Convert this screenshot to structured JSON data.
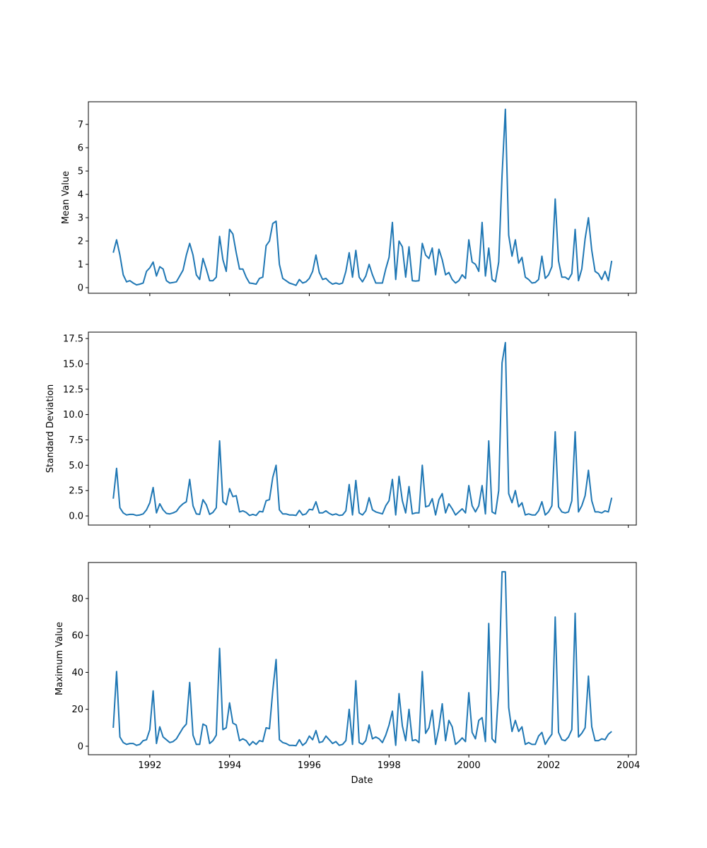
{
  "chart_data": {
    "type": "line",
    "layout": "3 vertically stacked subplots sharing the x axis",
    "xlabel": "Date",
    "xlim": [
      1990.46,
      2004.2
    ],
    "xticks": [
      "1992",
      "1994",
      "1996",
      "1998",
      "2000",
      "2002",
      "2004"
    ],
    "color": "#1f77b4",
    "grid": false,
    "x": [
      "1991-02",
      "1991-03",
      "1991-04",
      "1991-05",
      "1991-06",
      "1991-07",
      "1991-08",
      "1991-09",
      "1991-10",
      "1991-11",
      "1991-12",
      "1992-01",
      "1992-02",
      "1992-03",
      "1992-04",
      "1992-05",
      "1992-06",
      "1992-07",
      "1992-08",
      "1992-09",
      "1992-10",
      "1992-11",
      "1992-12",
      "1993-01",
      "1993-02",
      "1993-03",
      "1993-04",
      "1993-05",
      "1993-06",
      "1993-07",
      "1993-08",
      "1993-09",
      "1993-10",
      "1993-11",
      "1993-12",
      "1994-01",
      "1994-02",
      "1994-03",
      "1994-04",
      "1994-05",
      "1994-06",
      "1994-07",
      "1994-08",
      "1994-09",
      "1994-10",
      "1994-11",
      "1994-12",
      "1995-01",
      "1995-02",
      "1995-03",
      "1995-04",
      "1995-05",
      "1995-06",
      "1995-07",
      "1995-08",
      "1995-09",
      "1995-10",
      "1995-11",
      "1995-12",
      "1996-01",
      "1996-02",
      "1996-03",
      "1996-04",
      "1996-05",
      "1996-06",
      "1996-07",
      "1996-08",
      "1996-09",
      "1996-10",
      "1996-11",
      "1996-12",
      "1997-01",
      "1997-02",
      "1997-03",
      "1997-04",
      "1997-05",
      "1997-06",
      "1997-07",
      "1997-08",
      "1997-09",
      "1997-10",
      "1997-11",
      "1997-12",
      "1998-01",
      "1998-02",
      "1998-03",
      "1998-04",
      "1998-05",
      "1998-06",
      "1998-07",
      "1998-08",
      "1998-09",
      "1998-10",
      "1998-11",
      "1998-12",
      "1999-01",
      "1999-02",
      "1999-03",
      "1999-04",
      "1999-05",
      "1999-06",
      "1999-07",
      "1999-08",
      "1999-09",
      "1999-10",
      "1999-11",
      "1999-12",
      "2000-01",
      "2000-02",
      "2000-03",
      "2000-04",
      "2000-05",
      "2000-06",
      "2000-07",
      "2000-08",
      "2000-09",
      "2000-10",
      "2000-11",
      "2000-12",
      "2001-01",
      "2001-02",
      "2001-03",
      "2001-04",
      "2001-05",
      "2001-06",
      "2001-07",
      "2001-08",
      "2001-09",
      "2001-10",
      "2001-11",
      "2001-12",
      "2002-01",
      "2002-02",
      "2002-03",
      "2002-04",
      "2002-05",
      "2002-06",
      "2002-07",
      "2002-08",
      "2002-09",
      "2002-10",
      "2002-11",
      "2002-12",
      "2003-01",
      "2003-02",
      "2003-03",
      "2003-04",
      "2003-05",
      "2003-06",
      "2003-07",
      "2003-08"
    ],
    "panels": [
      {
        "ylabel": "Mean Value",
        "ylim": [
          -0.24,
          7.97
        ],
        "yticks": [
          "0",
          "1",
          "2",
          "3",
          "4",
          "5",
          "6",
          "7"
        ],
        "ytick_values": [
          0,
          1,
          2,
          3,
          4,
          5,
          6,
          7
        ],
        "values": [
          1.5,
          2.05,
          1.4,
          0.55,
          0.25,
          0.3,
          0.2,
          0.12,
          0.15,
          0.2,
          0.7,
          0.85,
          1.1,
          0.5,
          0.9,
          0.8,
          0.3,
          0.2,
          0.22,
          0.25,
          0.5,
          0.75,
          1.4,
          1.9,
          1.4,
          0.55,
          0.35,
          1.25,
          0.8,
          0.3,
          0.3,
          0.45,
          2.2,
          1.2,
          0.7,
          2.5,
          2.3,
          1.5,
          0.8,
          0.8,
          0.45,
          0.2,
          0.18,
          0.15,
          0.4,
          0.45,
          1.8,
          2.0,
          2.75,
          2.85,
          1.0,
          0.4,
          0.3,
          0.2,
          0.15,
          0.1,
          0.35,
          0.2,
          0.25,
          0.4,
          0.7,
          1.4,
          0.65,
          0.35,
          0.4,
          0.25,
          0.15,
          0.2,
          0.15,
          0.2,
          0.7,
          1.5,
          0.45,
          1.6,
          0.45,
          0.25,
          0.5,
          1.0,
          0.55,
          0.2,
          0.2,
          0.2,
          0.8,
          1.3,
          2.8,
          0.35,
          2.0,
          1.75,
          0.45,
          1.75,
          0.3,
          0.28,
          0.3,
          1.9,
          1.4,
          1.25,
          1.7,
          0.55,
          1.65,
          1.2,
          0.55,
          0.65,
          0.35,
          0.2,
          0.3,
          0.55,
          0.4,
          2.05,
          1.1,
          1.0,
          0.7,
          2.8,
          0.5,
          1.7,
          0.35,
          0.25,
          1.1,
          4.8,
          7.65,
          2.25,
          1.35,
          2.05,
          1.05,
          1.3,
          0.45,
          0.35,
          0.2,
          0.22,
          0.35,
          1.35,
          0.4,
          0.55,
          0.9,
          3.8,
          1.15,
          0.45,
          0.45,
          0.35,
          0.6,
          2.5,
          0.3,
          0.8,
          2.1,
          3.0,
          1.6,
          0.7,
          0.6,
          0.35,
          0.7,
          0.3,
          1.15
        ]
      },
      {
        "ylabel": "Standard Deviation",
        "ylim": [
          -0.9,
          18.13
        ],
        "yticks": [
          "0.0",
          "2.5",
          "5.0",
          "7.5",
          "10.0",
          "12.5",
          "15.0",
          "17.5"
        ],
        "ytick_values": [
          0,
          2.5,
          5,
          7.5,
          10,
          12.5,
          15,
          17.5
        ],
        "values": [
          1.7,
          4.7,
          0.8,
          0.3,
          0.1,
          0.15,
          0.15,
          0.05,
          0.1,
          0.2,
          0.6,
          1.3,
          2.8,
          0.3,
          1.2,
          0.6,
          0.25,
          0.2,
          0.3,
          0.45,
          0.9,
          1.2,
          1.4,
          3.6,
          1.0,
          0.2,
          0.15,
          1.6,
          1.1,
          0.15,
          0.35,
          0.8,
          7.4,
          1.4,
          1.1,
          2.7,
          1.9,
          2.0,
          0.4,
          0.5,
          0.35,
          0.05,
          0.15,
          0.05,
          0.45,
          0.4,
          1.5,
          1.6,
          3.8,
          5.0,
          0.6,
          0.2,
          0.2,
          0.1,
          0.1,
          0.05,
          0.55,
          0.1,
          0.2,
          0.65,
          0.6,
          1.4,
          0.3,
          0.3,
          0.5,
          0.25,
          0.1,
          0.2,
          0.05,
          0.1,
          0.5,
          3.1,
          0.1,
          3.5,
          0.3,
          0.1,
          0.5,
          1.8,
          0.6,
          0.4,
          0.3,
          0.2,
          1.0,
          1.5,
          3.6,
          0.1,
          3.9,
          1.5,
          0.3,
          2.9,
          0.2,
          0.3,
          0.3,
          5.0,
          0.9,
          1.0,
          1.7,
          0.1,
          1.6,
          2.2,
          0.3,
          1.2,
          0.7,
          0.1,
          0.4,
          0.7,
          0.3,
          3.0,
          1.0,
          0.4,
          1.0,
          3.0,
          0.2,
          7.4,
          0.4,
          0.2,
          2.5,
          15.1,
          17.1,
          2.2,
          1.3,
          2.5,
          0.9,
          1.3,
          0.1,
          0.2,
          0.1,
          0.1,
          0.5,
          1.4,
          0.1,
          0.4,
          1.0,
          8.3,
          0.9,
          0.4,
          0.3,
          0.4,
          1.5,
          8.3,
          0.4,
          1.0,
          2.0,
          4.5,
          1.5,
          0.4,
          0.4,
          0.3,
          0.5,
          0.4,
          1.8
        ]
      },
      {
        "ylabel": "Maximum Value",
        "ylim": [
          -4.6,
          99.5
        ],
        "yticks": [
          "0",
          "20",
          "40",
          "60",
          "80"
        ],
        "ytick_values": [
          0,
          20,
          40,
          60,
          80
        ],
        "values": [
          10,
          40.5,
          5,
          2,
          1,
          1.5,
          1.5,
          0.5,
          1,
          3,
          3.5,
          9,
          30,
          1.5,
          10.5,
          5,
          3.5,
          2,
          2.5,
          4,
          7,
          10,
          12,
          34.5,
          6,
          1,
          1,
          12,
          11,
          1.5,
          3,
          6,
          53,
          9,
          10,
          23.5,
          12.5,
          11.5,
          3,
          4,
          3,
          0.5,
          2.5,
          1,
          3,
          2.5,
          10,
          9.5,
          30,
          47,
          3.5,
          2,
          1.5,
          0.5,
          0.5,
          0.3,
          3.5,
          0.5,
          2,
          5.5,
          3.5,
          8.5,
          2,
          2.5,
          5.5,
          3.5,
          1.5,
          2.5,
          0.5,
          1,
          3,
          20,
          1,
          35.5,
          2,
          1,
          3,
          11.5,
          4,
          5,
          4,
          2,
          6,
          11.5,
          19,
          0.5,
          28.5,
          11,
          3,
          20,
          3,
          3.5,
          2,
          40.5,
          7,
          10,
          19.5,
          1,
          10,
          23,
          3,
          14,
          10.5,
          1,
          2.5,
          4.5,
          2.5,
          29,
          7.5,
          4,
          14,
          15.5,
          2.5,
          66.5,
          4,
          2,
          31,
          94.5,
          94.5,
          21,
          8,
          14,
          8,
          10.5,
          1,
          2,
          1,
          1,
          5.5,
          7.5,
          1,
          4,
          6.5,
          70,
          7.5,
          3.5,
          3,
          5,
          9,
          72,
          5,
          7,
          10,
          38,
          10.5,
          3,
          3,
          4,
          3.5,
          6.5,
          8
        ]
      }
    ]
  }
}
